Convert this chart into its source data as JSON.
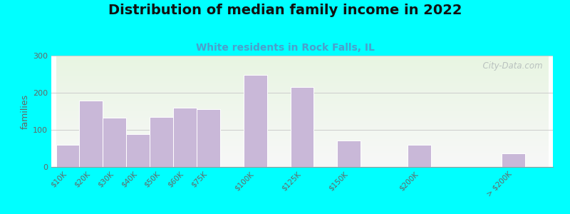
{
  "title": "Distribution of median family income in 2022",
  "subtitle": "White residents in Rock Falls, IL",
  "categories": [
    "$10K",
    "$20K",
    "$30K",
    "$40K",
    "$50K",
    "$60K",
    "$75K",
    "$100K",
    "$125K",
    "$150K",
    "$200K",
    "> $200K"
  ],
  "values": [
    60,
    178,
    132,
    88,
    135,
    160,
    155,
    248,
    215,
    72,
    60,
    37
  ],
  "bar_color": "#c9b8d8",
  "bar_edge_color": "#ffffff",
  "background_outer": "#00ffff",
  "background_plot_top": "#e8f5e2",
  "background_plot_bottom": "#f8f8f8",
  "title_fontsize": 14,
  "subtitle_fontsize": 10,
  "subtitle_color": "#4aa0cc",
  "ylabel": "families",
  "ylabel_fontsize": 9,
  "ylim": [
    0,
    300
  ],
  "yticks": [
    0,
    100,
    200,
    300
  ],
  "watermark": "  City-Data.com",
  "grid_color": "#cccccc",
  "tick_label_color": "#666666",
  "positions": [
    0,
    1,
    2,
    3,
    4,
    5,
    6,
    8,
    10,
    12,
    15,
    19
  ],
  "bar_width": 1.0
}
